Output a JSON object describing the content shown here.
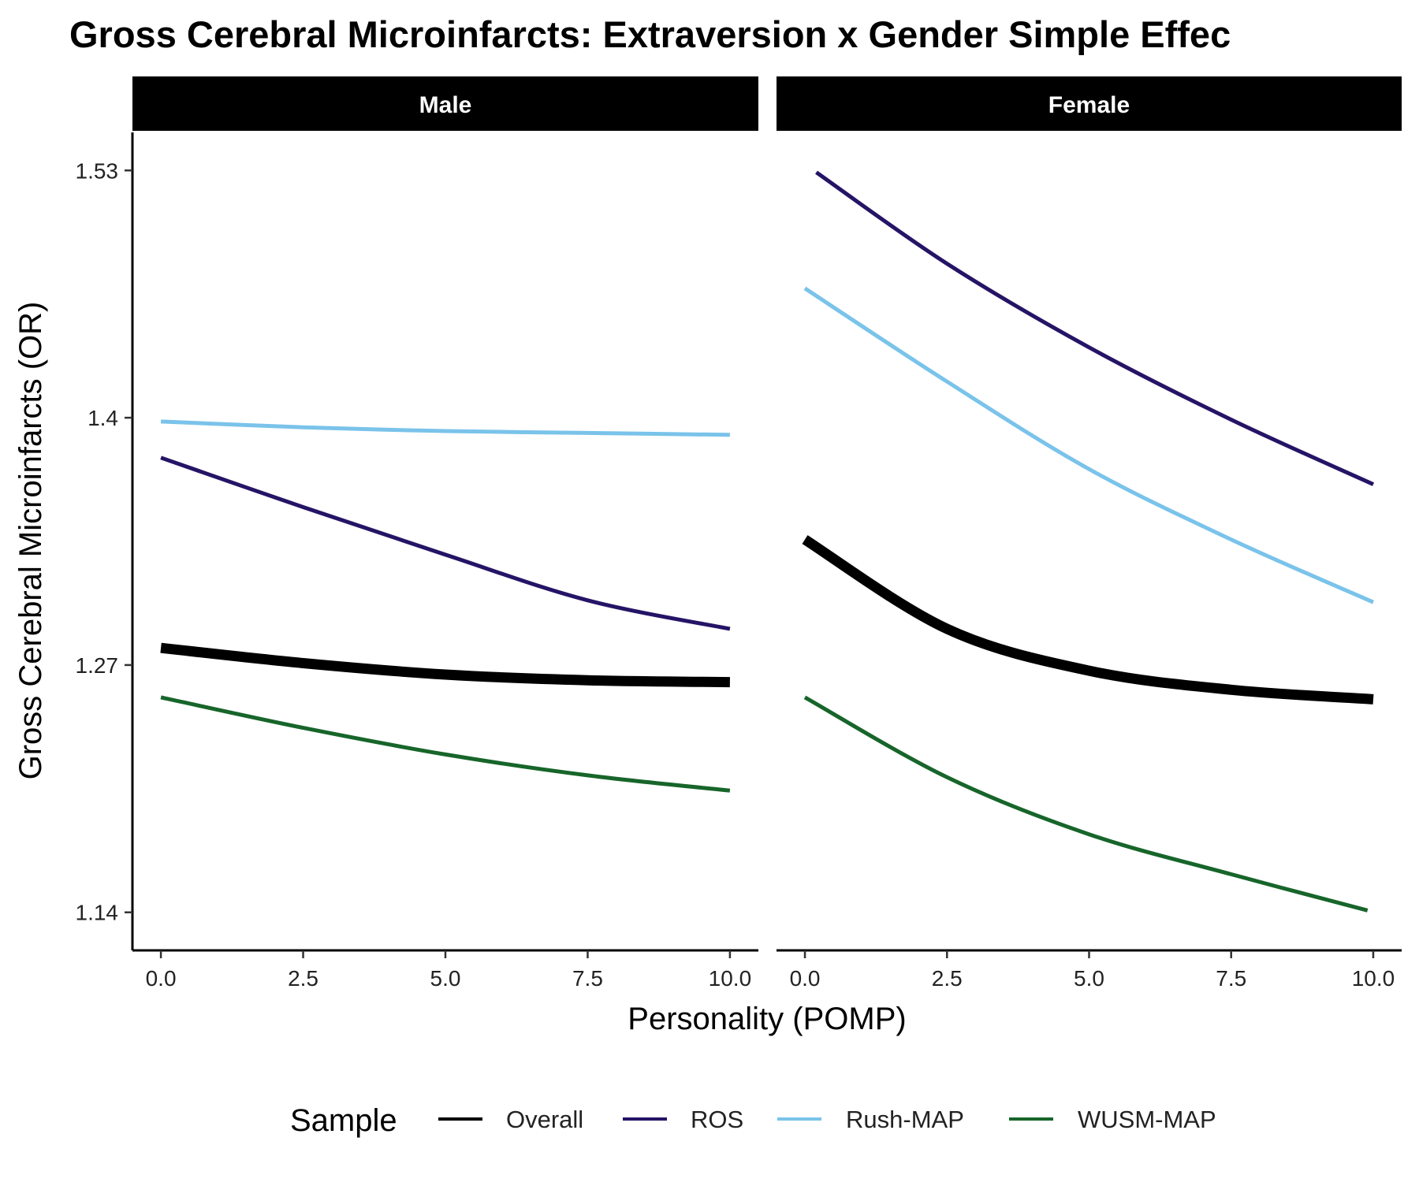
{
  "chart_data": {
    "type": "line",
    "title": "Gross Cerebral Microinfarcts: Extraversion x Gender Simple Effec",
    "xlabel": "Personality (POMP)",
    "ylabel": "Gross Cerebral Microinfarcts (OR)",
    "x_ticks": [
      "0.0",
      "2.5",
      "5.0",
      "7.5",
      "10.0"
    ],
    "y_ticks": [
      "1.14",
      "1.27",
      "1.4",
      "1.53"
    ],
    "xlim": [
      -0.5,
      10.5
    ],
    "ylim": [
      1.12,
      1.55
    ],
    "grid": false,
    "legend": {
      "title": "Sample",
      "position": "bottom",
      "entries": [
        "Overall",
        "ROS",
        "Rush-MAP",
        "WUSM-MAP"
      ]
    },
    "series_colors": {
      "Overall": "#000000",
      "ROS": "#251466",
      "Rush-MAP": "#7ac3ea",
      "WUSM-MAP": "#17652a"
    },
    "panels": [
      {
        "name": "Male",
        "series": [
          {
            "name": "Overall",
            "x": [
              0,
              2.5,
              5,
              7.5,
              10
            ],
            "y": [
              1.279,
              1.271,
              1.265,
              1.262,
              1.261
            ]
          },
          {
            "name": "ROS",
            "x": [
              0,
              2.5,
              5,
              7.5,
              10
            ],
            "y": [
              1.379,
              1.353,
              1.328,
              1.304,
              1.289
            ]
          },
          {
            "name": "Rush-MAP",
            "x": [
              0,
              2.5,
              5,
              7.5,
              10
            ],
            "y": [
              1.398,
              1.395,
              1.393,
              1.392,
              1.391
            ]
          },
          {
            "name": "WUSM-MAP",
            "x": [
              0,
              2.5,
              5,
              7.5,
              10
            ],
            "y": [
              1.253,
              1.237,
              1.223,
              1.212,
              1.204
            ]
          }
        ]
      },
      {
        "name": "Female",
        "series": [
          {
            "name": "Overall",
            "x": [
              0,
              2.5,
              5,
              7.5,
              10
            ],
            "y": [
              1.336,
              1.289,
              1.267,
              1.257,
              1.252
            ]
          },
          {
            "name": "ROS",
            "x": [
              0.2,
              2.5,
              5,
              7.5,
              10
            ],
            "y": [
              1.529,
              1.481,
              1.437,
              1.399,
              1.365
            ]
          },
          {
            "name": "Rush-MAP",
            "x": [
              0,
              2.5,
              5,
              7.5,
              10
            ],
            "y": [
              1.468,
              1.419,
              1.373,
              1.336,
              1.303
            ]
          },
          {
            "name": "WUSM-MAP",
            "x": [
              0,
              2.5,
              5,
              7.5,
              9.9
            ],
            "y": [
              1.253,
              1.211,
              1.181,
              1.16,
              1.141
            ]
          }
        ]
      }
    ]
  }
}
